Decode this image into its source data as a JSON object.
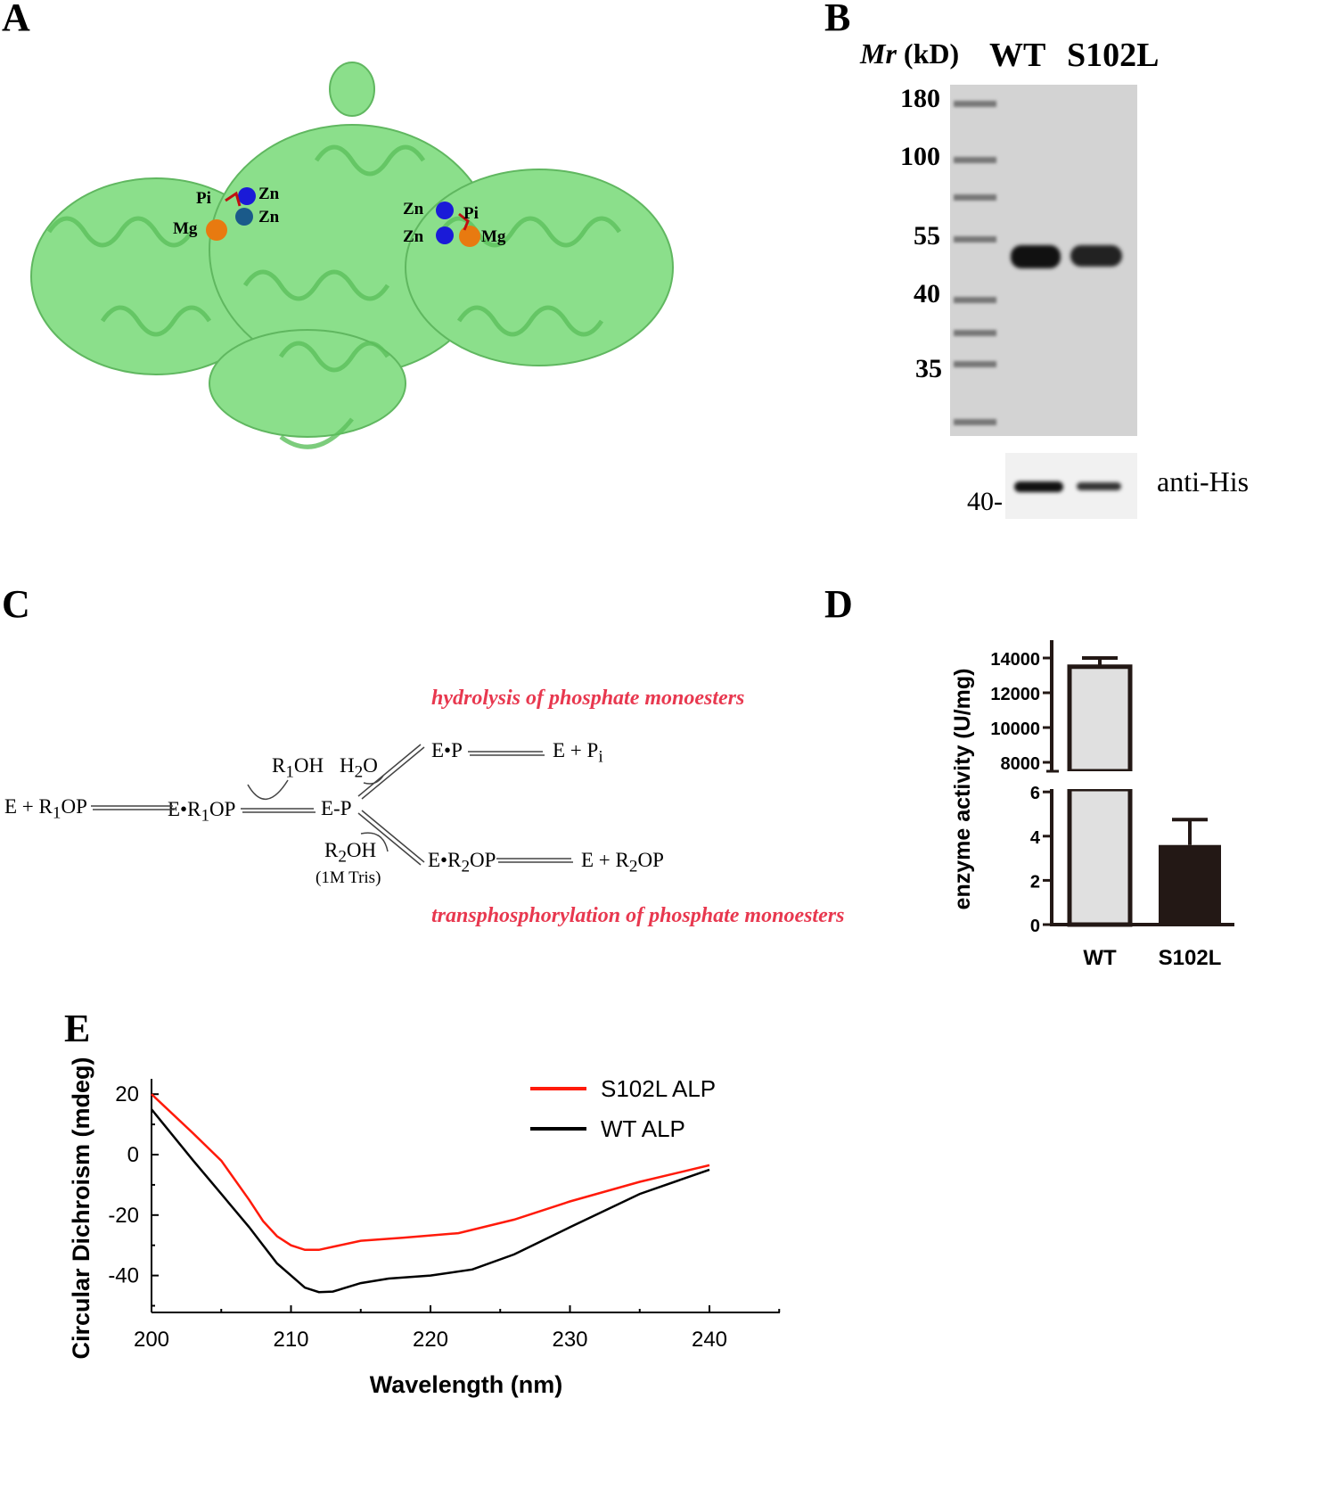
{
  "panels": {
    "a": "A",
    "b": "B",
    "c": "C",
    "d": "D",
    "e": "E"
  },
  "panel_a": {
    "labels": {
      "pi1": "Pi",
      "zn1": "Zn",
      "zn2": "Zn",
      "mg1": "Mg",
      "zn3": "Zn",
      "pi2": "Pi",
      "zn4": "Zn",
      "mg2": "Mg"
    },
    "protein_color": "#6fd46f"
  },
  "panel_b": {
    "mr_italic": "Mr",
    "mr_unit": "(kD)",
    "lanes": [
      "WT",
      "S102L"
    ],
    "markers": [
      "180",
      "100",
      "55",
      "40",
      "35"
    ],
    "blot_marker": "40-",
    "blot_label": "anti-His"
  },
  "panel_c": {
    "hydrolysis": "hydrolysis of phosphate monoesters",
    "transphos": "transphosphorylation of phosphate monoesters",
    "s1": "E + R",
    "s1b": "OP",
    "sub1": "1",
    "s2": "E•R",
    "s2b": "OP",
    "s3": "E-P",
    "s4": "E•P",
    "s5": "E + P",
    "sub_i": "i",
    "s6": "E•R",
    "s6b": "OP",
    "sub2": "2",
    "s7": "E + R",
    "s7b": "OP",
    "r1oh": "R",
    "r1oh_b": "OH",
    "h2o": "H",
    "h2o_b": "O",
    "r2oh": "R",
    "r2oh_b": "OH",
    "tris": "(1M Tris)"
  },
  "chart_data": [
    {
      "type": "bar",
      "categories": [
        "WT",
        "S102L"
      ],
      "values": [
        13500,
        3.6
      ],
      "errors_upper": [
        14000,
        4.75
      ],
      "ylabel": "enzyme activity (U/mg)",
      "broken_axis": true,
      "upper_ticks": [
        "8000",
        "10000",
        "12000",
        "14000"
      ],
      "lower_ticks": [
        "0",
        "2",
        "4",
        "6"
      ],
      "colors": [
        "#e0e0e0",
        "#231815"
      ]
    },
    {
      "type": "line",
      "xlabel": "Wavelength (nm)",
      "ylabel": "Circular Dichroism (mdeg)",
      "xlim": [
        200,
        245
      ],
      "ylim": [
        -52,
        25
      ],
      "xticks": [
        "200",
        "210",
        "220",
        "230",
        "240"
      ],
      "yticks": [
        "20",
        "0",
        "-20",
        "-40"
      ],
      "legend_position": "top-right",
      "series": [
        {
          "name": "S102L ALP",
          "color": "#ff1a0a",
          "x": [
            200,
            203,
            205,
            207,
            208,
            209,
            210,
            211,
            212,
            213,
            215,
            218,
            222,
            226,
            230,
            235,
            240
          ],
          "y": [
            20,
            7,
            -2,
            -15,
            -22,
            -27,
            -30,
            -31.5,
            -31.5,
            -30.5,
            -28.5,
            -27.5,
            -26,
            -21.5,
            -15.5,
            -9,
            -3.5
          ]
        },
        {
          "name": "WT ALP",
          "color": "#000000",
          "x": [
            200,
            203,
            205,
            207,
            208,
            209,
            210,
            211,
            212,
            213,
            215,
            217,
            220,
            223,
            226,
            230,
            235,
            240
          ],
          "y": [
            15,
            -2,
            -13,
            -24,
            -30,
            -36,
            -40,
            -44,
            -45.5,
            -45.3,
            -42.5,
            -41,
            -40,
            -38,
            -33,
            -24,
            -13,
            -5
          ]
        }
      ]
    }
  ]
}
